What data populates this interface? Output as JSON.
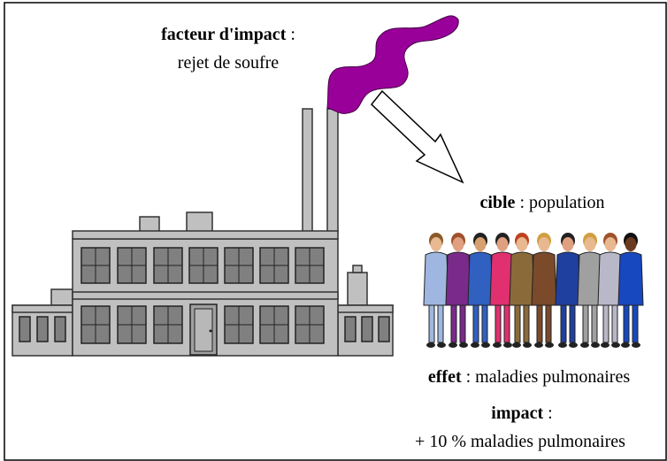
{
  "labels": {
    "impact_factor": {
      "term": "facteur d'impact",
      "text": " :",
      "detail": "rejet de soufre"
    },
    "target": {
      "term": "cible",
      "text": " : population"
    },
    "effect": {
      "term": "effet",
      "text": " : maladies pulmonaires"
    },
    "impact": {
      "term": "impact",
      "text": " :",
      "detail": "+ 10 % maladies pulmonaires"
    }
  }
}
